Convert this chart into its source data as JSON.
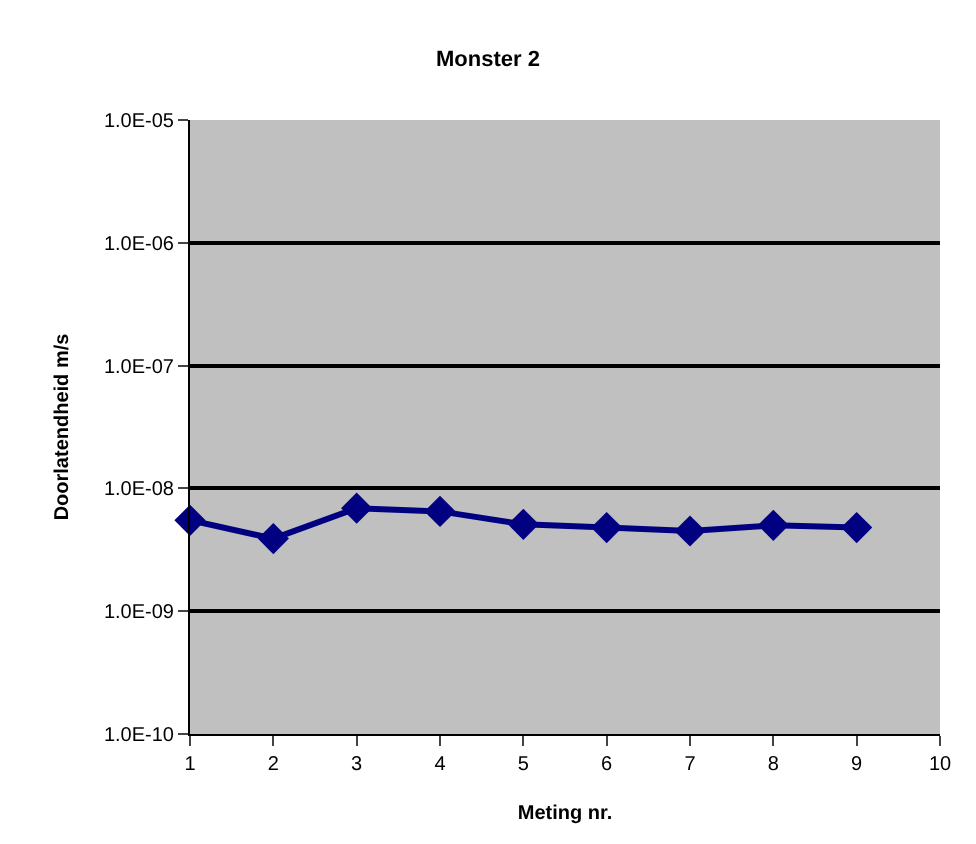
{
  "chart_data": {
    "type": "line",
    "title": "Monster 2",
    "xlabel": "Meting nr.",
    "ylabel": "Doorlatendheid m/s",
    "x": [
      1,
      2,
      3,
      4,
      5,
      6,
      7,
      8,
      9
    ],
    "series": [
      {
        "color": "#000080",
        "values": [
          5.5e-09,
          3.9e-09,
          6.9e-09,
          6.5e-09,
          5.1e-09,
          4.8e-09,
          4.5e-09,
          5e-09,
          4.8e-09
        ]
      }
    ],
    "log": "y",
    "xlim": [
      1,
      10
    ],
    "xticks": [
      1,
      2,
      3,
      4,
      5,
      6,
      7,
      8,
      9,
      10
    ],
    "ylim": [
      1e-10,
      1e-05
    ],
    "yticks": [
      {
        "value": 1e-10,
        "label": "1.0E-10"
      },
      {
        "value": 1e-09,
        "label": "1.0E-09"
      },
      {
        "value": 1e-08,
        "label": "1.0E-08"
      },
      {
        "value": 1e-07,
        "label": "1.0E-07"
      },
      {
        "value": 1e-06,
        "label": "1.0E-06"
      },
      {
        "value": 1e-05,
        "label": "1.0E-05"
      }
    ],
    "grid": "y",
    "marker": "diamond",
    "line_style": "solid",
    "legend": false
  }
}
